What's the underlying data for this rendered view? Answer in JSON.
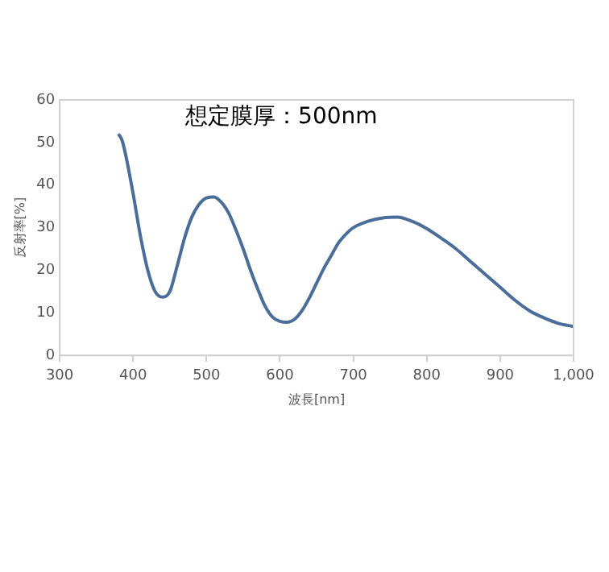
{
  "chart_data": {
    "type": "line",
    "xlabel": "波長[nm]",
    "ylabel": "反射率[%]",
    "annotations": [
      "想定膜厚：500nm"
    ],
    "x": [
      380,
      385,
      390,
      400,
      410,
      420,
      430,
      440,
      450,
      460,
      470,
      480,
      490,
      500,
      510,
      520,
      530,
      540,
      550,
      560,
      570,
      580,
      590,
      600,
      610,
      620,
      630,
      640,
      650,
      660,
      670,
      680,
      690,
      700,
      720,
      740,
      760,
      780,
      800,
      820,
      840,
      860,
      880,
      900,
      920,
      940,
      960,
      980,
      1000
    ],
    "series": [
      {
        "color": "#4a6d99",
        "values": [
          52,
          50.5,
          47,
          38,
          28,
          20,
          15,
          13.7,
          15,
          21,
          27.5,
          32.5,
          35.5,
          37,
          37.2,
          36,
          33.5,
          29.5,
          25,
          20,
          15.5,
          11.5,
          9,
          8,
          7.8,
          8.5,
          10.5,
          13.5,
          17,
          20.5,
          23.5,
          26.5,
          28.5,
          30,
          31.5,
          32.3,
          32.5,
          31.5,
          29.8,
          27.5,
          25,
          22,
          19,
          16,
          13,
          10.5,
          8.8,
          7.5,
          6.8
        ]
      }
    ],
    "xlim": [
      300,
      1000
    ],
    "xticks": [
      300,
      400,
      500,
      600,
      700,
      800,
      900,
      {
        "value": 1000,
        "label": "1,000"
      }
    ],
    "ylim": [
      0,
      60
    ],
    "yticks": [
      0,
      10,
      20,
      30,
      40,
      50,
      60
    ],
    "grid": false,
    "legend": false,
    "marker": "none",
    "line_style": "solid"
  }
}
